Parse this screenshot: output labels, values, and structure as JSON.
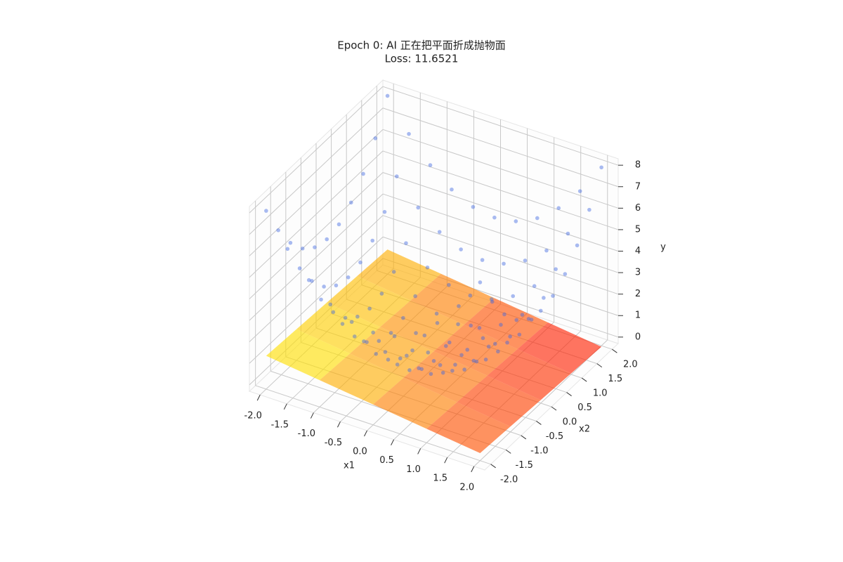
{
  "chart_data": {
    "type": "scatter3d_surface",
    "title": "Epoch 0: AI 正在把平面折成抛物面",
    "subtitle": "Loss: 11.6521",
    "xlabel": "x1",
    "ylabel": "x2",
    "zlabel": "y",
    "xlim": [
      -2.2,
      2.2
    ],
    "ylim": [
      -2.2,
      2.2
    ],
    "zlim": [
      -0.3,
      8.3
    ],
    "xticks": [
      {
        "value": -2,
        "label": "-2.0"
      },
      {
        "value": -1.5,
        "label": "-1.5"
      },
      {
        "value": -1,
        "label": "-1.0"
      },
      {
        "value": -0.5,
        "label": "-0.5"
      },
      {
        "value": 0,
        "label": "0.0"
      },
      {
        "value": 0.5,
        "label": "0.5"
      },
      {
        "value": 1,
        "label": "1.0"
      },
      {
        "value": 1.5,
        "label": "1.5"
      },
      {
        "value": 2,
        "label": "2.0"
      }
    ],
    "yticks": [
      {
        "value": -2,
        "label": "-2.0"
      },
      {
        "value": -1.5,
        "label": "-1.5"
      },
      {
        "value": -1,
        "label": "-1.0"
      },
      {
        "value": -0.5,
        "label": "-0.5"
      },
      {
        "value": 0,
        "label": "0.0"
      },
      {
        "value": 0.5,
        "label": "0.5"
      },
      {
        "value": 1,
        "label": "1.0"
      },
      {
        "value": 1.5,
        "label": "1.5"
      },
      {
        "value": 2,
        "label": "2.0"
      }
    ],
    "zticks": [
      0,
      1,
      2,
      3,
      4,
      5,
      6,
      7,
      8
    ],
    "grid": true,
    "scatter": {
      "color": "#4169e1",
      "x1": [
        -2,
        -1.6,
        -1.2,
        -0.8,
        -0.4,
        0,
        0.4,
        0.8,
        1.2,
        1.6,
        2
      ],
      "x2": [
        -2,
        -1.6,
        -1.2,
        -0.8,
        -0.4,
        0,
        0.4,
        0.8,
        1.2,
        1.6,
        2
      ],
      "values": [
        [
          8,
          6.56,
          5.44,
          4.64,
          4.16,
          4,
          4.16,
          4.64,
          5.44,
          6.56,
          8
        ],
        [
          6.56,
          5.12,
          4,
          3.2,
          2.72,
          2.56,
          2.72,
          3.2,
          4,
          5.12,
          6.56
        ],
        [
          5.44,
          4,
          2.88,
          2.08,
          1.6,
          1.44,
          1.6,
          2.08,
          2.88,
          4,
          5.44
        ],
        [
          4.64,
          3.2,
          2.08,
          1.28,
          0.8,
          0.64,
          0.8,
          1.28,
          2.08,
          3.2,
          4.64
        ],
        [
          4.16,
          2.72,
          1.6,
          0.8,
          0.32,
          0.16,
          0.32,
          0.8,
          1.6,
          2.72,
          4.16
        ],
        [
          4,
          2.56,
          1.44,
          0.64,
          0.16,
          0,
          0.16,
          0.64,
          1.44,
          2.56,
          4
        ],
        [
          4.16,
          2.72,
          1.6,
          0.8,
          0.32,
          0.16,
          0.32,
          0.8,
          1.6,
          2.72,
          4.16
        ],
        [
          4.64,
          3.2,
          2.08,
          1.28,
          0.8,
          0.64,
          0.8,
          1.28,
          2.08,
          3.2,
          4.64
        ],
        [
          5.44,
          4,
          2.88,
          2.08,
          1.6,
          1.44,
          1.6,
          2.08,
          2.88,
          4,
          5.44
        ],
        [
          6.56,
          5.12,
          4,
          3.2,
          2.72,
          2.56,
          2.72,
          3.2,
          4,
          5.12,
          6.56
        ],
        [
          8,
          6.56,
          5.44,
          4.64,
          4.16,
          4,
          4.16,
          4.64,
          5.44,
          6.56,
          8
        ]
      ]
    },
    "surface": {
      "cmap": "autumn",
      "x1": [
        -2,
        -1,
        0,
        1,
        2
      ],
      "x2": [
        -2,
        -1,
        0,
        1,
        2
      ],
      "values": [
        [
          1.25,
          0.95,
          0.65,
          0.35,
          0.05
        ],
        [
          1.15,
          0.85,
          0.55,
          0.25,
          -0.05
        ],
        [
          1.05,
          0.75,
          0.45,
          0.15,
          -0.15
        ],
        [
          0.95,
          0.65,
          0.35,
          0.05,
          -0.25
        ],
        [
          0.85,
          0.55,
          0.25,
          -0.05,
          -0.35
        ]
      ]
    }
  }
}
